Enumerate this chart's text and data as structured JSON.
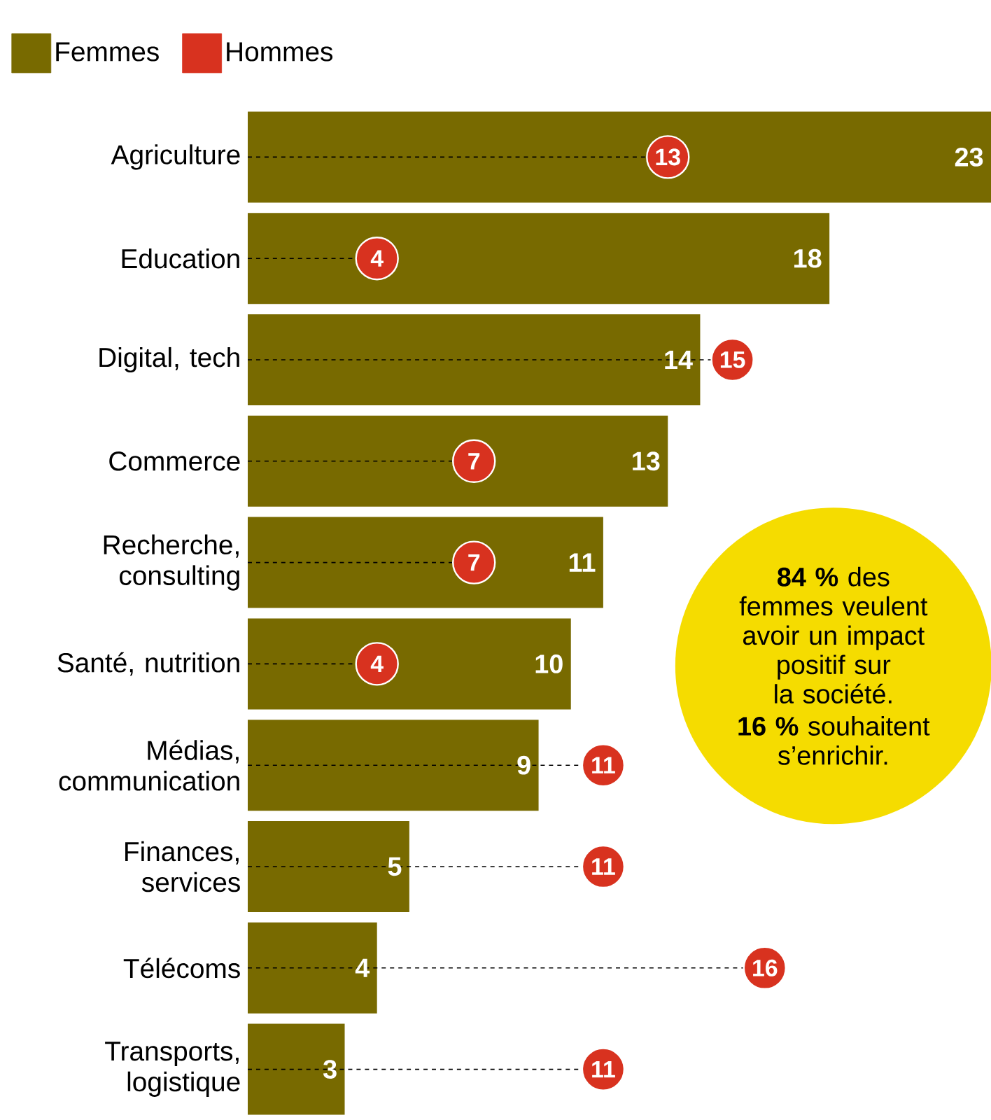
{
  "chart_data": {
    "type": "bar",
    "orientation": "horizontal",
    "categories": [
      "Agriculture",
      "Education",
      "Digital, tech",
      "Commerce",
      "Recherche, consulting",
      "Santé, nutrition",
      "Médias, communication",
      "Finances, services",
      "Télécoms",
      "Transports, logistique"
    ],
    "series": [
      {
        "name": "Femmes",
        "color": "#786a00",
        "values": [
          23,
          18,
          14,
          13,
          11,
          10,
          9,
          5,
          4,
          3
        ]
      },
      {
        "name": "Hommes",
        "type": "lollipop",
        "line_style": "dashed",
        "marker": "circle",
        "color": "#d8321f",
        "values": [
          13,
          4,
          15,
          7,
          7,
          4,
          11,
          11,
          16,
          11
        ]
      }
    ],
    "xlim": [
      0,
      23
    ],
    "data_labels": true,
    "legend": "top left",
    "tick_labels": "y",
    "annotations": [
      "**84 %** des femmes veulent avoir un impact positif sur la société.",
      "**16 %** souhaitent s’enrichir."
    ]
  }
}
